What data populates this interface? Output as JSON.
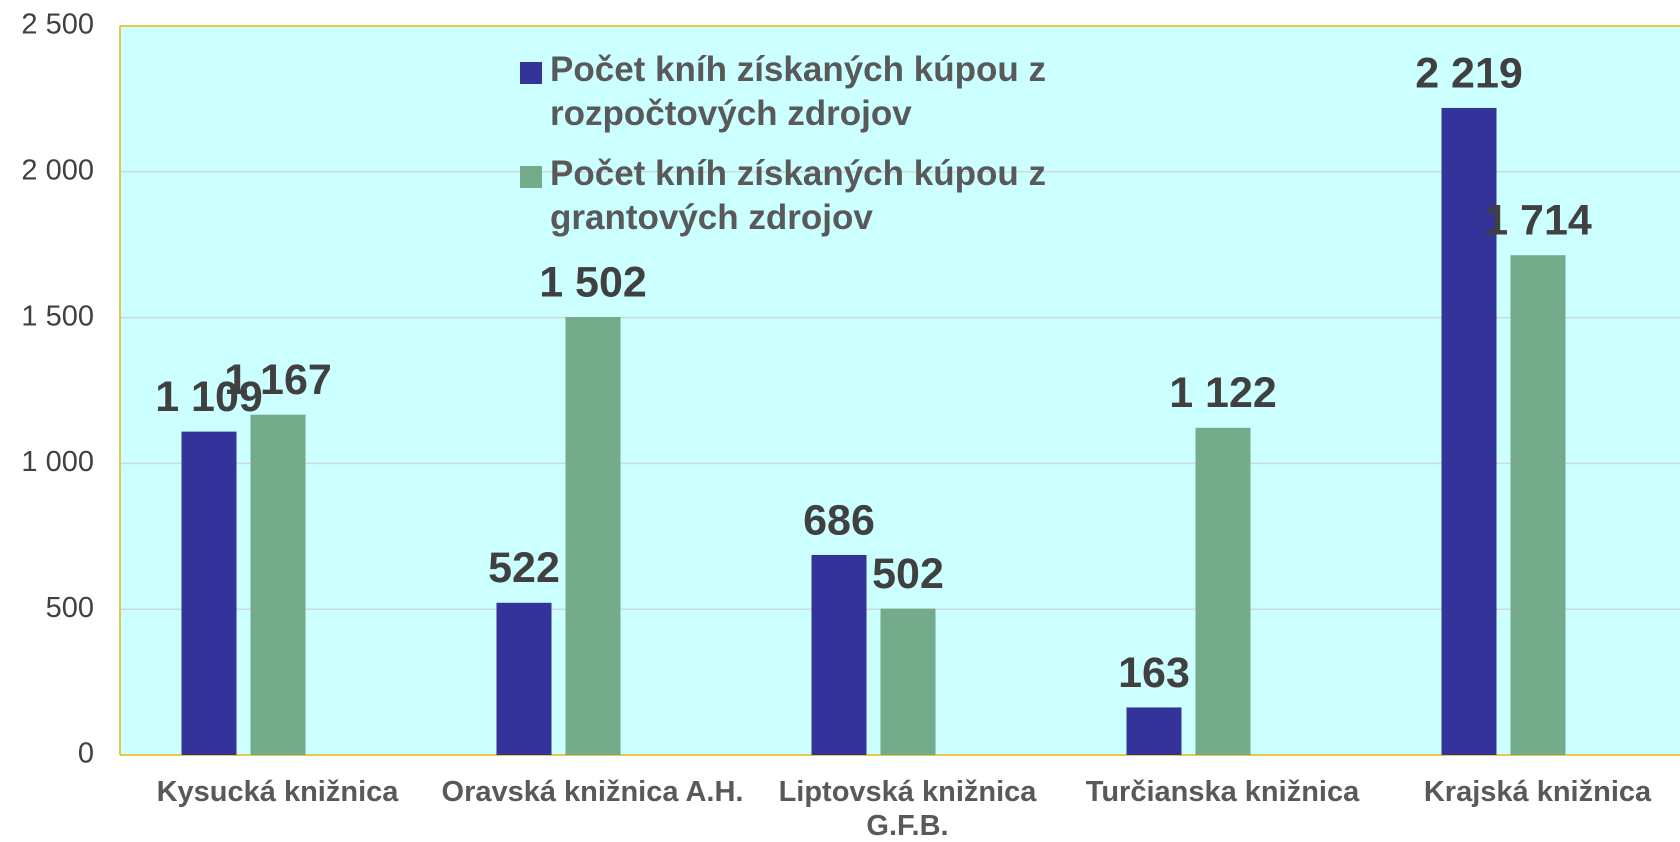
{
  "chart_data": {
    "type": "bar",
    "categories": [
      "Kysucká knižnica",
      "Oravská knižnica A.H.",
      "Liptovská knižnica G.F.B.",
      "Turčianska knižnica",
      "Krajská knižnica"
    ],
    "series": [
      {
        "name": "Počet kníh získaných kúpou z rozpočtových zdrojov",
        "color": "#333399",
        "values": [
          1109,
          522,
          686,
          163,
          2219
        ],
        "value_labels": [
          "1 109",
          "522",
          "686",
          "163",
          "2 219"
        ]
      },
      {
        "name": "Počet kníh  získaných kúpou z grantových zdrojov",
        "color": "#74ab8a",
        "values": [
          1167,
          1502,
          502,
          1122,
          1714
        ],
        "value_labels": [
          "1 167",
          "1 502",
          "502",
          "1 122",
          "1 714"
        ]
      }
    ],
    "ylim": [
      0,
      2500
    ],
    "yticks": [
      0,
      500,
      {
        "value": 1000,
        "label": "1 000"
      },
      {
        "value": 1500,
        "label": "1 500"
      },
      {
        "value": 2000,
        "label": "2 000"
      },
      {
        "value": 2500,
        "label": "2 500"
      }
    ],
    "grid": true,
    "legend": "top",
    "background": "#ccffff"
  }
}
